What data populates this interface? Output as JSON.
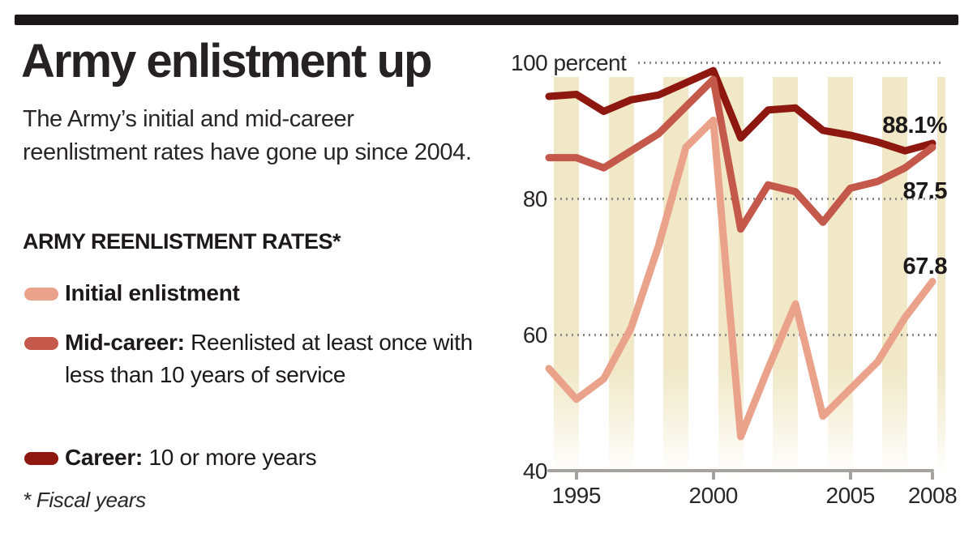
{
  "header": {
    "title": "Army enlistment up",
    "intro": "The Army’s initial and mid-career reenlistment rates have gone up since 2004."
  },
  "legend": {
    "heading": "ARMY REENLISTMENT RATES*",
    "items": [
      {
        "key": "initial",
        "label_bold": "Initial enlistment",
        "label_rest": "",
        "color": "#eba28b"
      },
      {
        "key": "mid",
        "label_bold": "Mid-career:",
        "label_rest": " Reenlisted at least once with less than 10 years of service",
        "color": "#c4584a"
      },
      {
        "key": "career",
        "label_bold": "Career:",
        "label_rest": " 10 or more years",
        "color": "#8e1710"
      }
    ]
  },
  "footnote": "* Fiscal years",
  "chart_data": {
    "type": "line",
    "x": [
      1994,
      1995,
      1996,
      1997,
      1998,
      1999,
      2000,
      2001,
      2002,
      2003,
      2004,
      2005,
      2006,
      2007,
      2008
    ],
    "series": [
      {
        "name": "Initial enlistment",
        "color": "#eba28b",
        "end_label": "67.8",
        "values": [
          55,
          50.5,
          53.5,
          61,
          73,
          87.5,
          91.5,
          45,
          55,
          64.5,
          48,
          52,
          56,
          62.5,
          67.8
        ]
      },
      {
        "name": "Mid-career",
        "color": "#c4584a",
        "end_label": "87.5",
        "values": [
          86,
          86,
          84.5,
          87,
          89.5,
          93.5,
          97.5,
          75.5,
          82,
          81,
          76.5,
          81.5,
          82.5,
          84.5,
          87.5
        ]
      },
      {
        "name": "Career",
        "color": "#8e1710",
        "end_label": "88.1%",
        "values": [
          95,
          95.3,
          92.8,
          94.5,
          95.2,
          97,
          98.8,
          88.9,
          93,
          93.3,
          90,
          89.3,
          88.3,
          87,
          88.1
        ]
      }
    ],
    "yticks": [
      {
        "value": 100,
        "label": "100 percent"
      },
      {
        "value": 80,
        "label": "80"
      },
      {
        "value": 60,
        "label": "60"
      },
      {
        "value": 40,
        "label": "40"
      }
    ],
    "grid_values": [
      100,
      80,
      60
    ],
    "xticks": [
      {
        "year": 1995,
        "label": "1995"
      },
      {
        "year": 2000,
        "label": "2000"
      },
      {
        "year": 2005,
        "label": "2005"
      },
      {
        "year": 2008,
        "label": "2008"
      }
    ],
    "stripe_years": [
      1994,
      1996,
      1998,
      2000,
      2002,
      2004,
      2006,
      2008
    ],
    "stripe_color": "#f0e8c6",
    "ylim": [
      40,
      100
    ],
    "xlim": [
      1994,
      2008
    ],
    "legend_position": "left-column",
    "grid": "horizontal dotted"
  }
}
